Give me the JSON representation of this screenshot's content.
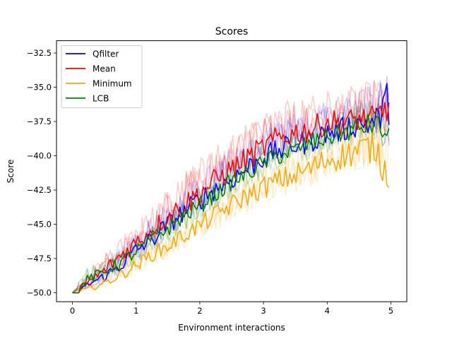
{
  "chart_data": {
    "type": "line",
    "title": "Scores",
    "xlabel": "Environment interactions",
    "ylabel": "Score",
    "xlim": [
      -0.25,
      5.25
    ],
    "ylim": [
      -50.65,
      -31.6
    ],
    "xticks": [
      0,
      1,
      2,
      3,
      4,
      5
    ],
    "xtick_labels": [
      "0",
      "1",
      "2",
      "3",
      "4",
      "5"
    ],
    "yticks": [
      -50.0,
      -47.5,
      -45.0,
      -42.5,
      -40.0,
      -37.5,
      -35.0,
      -32.5
    ],
    "ytick_labels": [
      "−50.0",
      "−47.5",
      "−45.0",
      "−42.5",
      "−40.0",
      "−37.5",
      "−35.0",
      "−32.5"
    ],
    "grid": false,
    "legend": "upper-left",
    "series": [
      {
        "name": "Qfilter",
        "color": "#0000ff",
        "x": [
          0,
          0.25,
          0.5,
          0.75,
          1,
          1.25,
          1.5,
          1.75,
          2,
          2.25,
          2.5,
          2.75,
          3,
          3.25,
          3.5,
          3.75,
          4,
          4.25,
          4.5,
          4.75,
          4.97
        ],
        "values": [
          -50.0,
          -49.4,
          -48.8,
          -48.0,
          -46.9,
          -46.1,
          -45.0,
          -44.1,
          -43.2,
          -42.4,
          -41.7,
          -40.9,
          -40.1,
          -39.6,
          -39.2,
          -38.9,
          -38.3,
          -38.1,
          -37.6,
          -37.6,
          -36.0
        ],
        "band_low": [
          -50.0,
          -49.9,
          -49.6,
          -49.2,
          -48.4,
          -47.6,
          -46.7,
          -45.7,
          -44.8,
          -44.0,
          -43.2,
          -42.5,
          -41.8,
          -41.2,
          -40.8,
          -40.5,
          -40.1,
          -39.9,
          -39.6,
          -39.6,
          -41.7
        ],
        "band_high": [
          -50.0,
          -48.6,
          -47.7,
          -46.3,
          -45.0,
          -43.9,
          -42.8,
          -41.6,
          -40.6,
          -39.6,
          -38.8,
          -38.0,
          -37.2,
          -36.6,
          -36.1,
          -35.8,
          -35.3,
          -35.0,
          -34.4,
          -33.8,
          -32.5
        ]
      },
      {
        "name": "Mean",
        "color": "#ff0000",
        "x": [
          0,
          0.25,
          0.5,
          0.75,
          1,
          1.25,
          1.5,
          1.75,
          2,
          2.25,
          2.5,
          2.75,
          3,
          3.25,
          3.5,
          3.75,
          4,
          4.25,
          4.5,
          4.75,
          4.97
        ],
        "values": [
          -50.0,
          -49.2,
          -48.4,
          -47.3,
          -46.3,
          -45.4,
          -44.4,
          -43.6,
          -42.7,
          -41.8,
          -41.0,
          -40.2,
          -39.4,
          -38.7,
          -38.3,
          -38.1,
          -37.5,
          -37.6,
          -37.3,
          -37.4,
          -36.2
        ],
        "band_low": [
          -50.0,
          -49.8,
          -49.4,
          -48.7,
          -47.8,
          -46.9,
          -46.0,
          -45.1,
          -44.3,
          -43.4,
          -42.6,
          -41.8,
          -41.1,
          -40.5,
          -40.0,
          -39.7,
          -39.3,
          -39.3,
          -39.0,
          -39.1,
          -40.5
        ],
        "band_high": [
          -50.0,
          -48.2,
          -46.8,
          -45.5,
          -44.2,
          -43.0,
          -41.7,
          -40.5,
          -39.4,
          -38.5,
          -37.6,
          -36.8,
          -36.2,
          -35.5,
          -35.0,
          -34.6,
          -34.3,
          -34.4,
          -34.0,
          -33.6,
          -34.0
        ]
      },
      {
        "name": "Minimum",
        "color": "#ffa500",
        "x": [
          0,
          0.25,
          0.5,
          0.75,
          1,
          1.25,
          1.5,
          1.75,
          2,
          2.25,
          2.5,
          2.75,
          3,
          3.25,
          3.5,
          3.75,
          4,
          4.25,
          4.5,
          4.75,
          4.97
        ],
        "values": [
          -50.0,
          -49.7,
          -49.3,
          -48.7,
          -48.0,
          -47.2,
          -46.6,
          -45.8,
          -45.1,
          -44.3,
          -43.6,
          -42.9,
          -42.3,
          -41.8,
          -41.4,
          -40.9,
          -40.3,
          -40.0,
          -39.6,
          -39.3,
          -41.6
        ],
        "band_low": [
          -50.0,
          -50.0,
          -49.8,
          -49.5,
          -49.0,
          -48.4,
          -47.9,
          -47.3,
          -46.6,
          -46.0,
          -45.4,
          -44.8,
          -44.2,
          -43.8,
          -43.4,
          -43.0,
          -42.6,
          -42.3,
          -42.0,
          -41.9,
          -42.5
        ],
        "band_high": [
          -50.0,
          -49.0,
          -48.3,
          -47.4,
          -46.5,
          -45.6,
          -44.8,
          -43.9,
          -43.1,
          -42.2,
          -41.4,
          -40.6,
          -39.8,
          -39.2,
          -38.6,
          -38.0,
          -37.5,
          -36.8,
          -35.6,
          -35.3,
          -35.6
        ]
      },
      {
        "name": "LCB",
        "color": "#008000",
        "x": [
          0,
          0.25,
          0.5,
          0.75,
          1,
          1.25,
          1.5,
          1.75,
          2,
          2.25,
          2.5,
          2.75,
          3,
          3.25,
          3.5,
          3.75,
          4,
          4.25,
          4.5,
          4.75,
          4.97
        ],
        "values": [
          -50.0,
          -49.0,
          -48.5,
          -47.8,
          -47.0,
          -46.0,
          -45.3,
          -44.4,
          -43.6,
          -42.8,
          -41.9,
          -41.3,
          -40.5,
          -40.0,
          -39.6,
          -39.0,
          -38.7,
          -38.3,
          -38.0,
          -37.6,
          -38.7
        ],
        "band_low": [
          -50.0,
          -49.7,
          -49.4,
          -49.0,
          -48.4,
          -47.6,
          -46.9,
          -46.0,
          -45.2,
          -44.4,
          -43.6,
          -42.9,
          -42.2,
          -41.6,
          -41.2,
          -40.7,
          -40.4,
          -40.0,
          -39.8,
          -39.5,
          -40.3
        ],
        "band_high": [
          -50.0,
          -47.6,
          -47.2,
          -46.4,
          -45.5,
          -44.6,
          -43.7,
          -42.8,
          -41.9,
          -41.0,
          -40.2,
          -39.4,
          -38.7,
          -38.1,
          -37.6,
          -37.0,
          -36.6,
          -36.1,
          -35.5,
          -35.0,
          -36.4
        ]
      }
    ]
  }
}
